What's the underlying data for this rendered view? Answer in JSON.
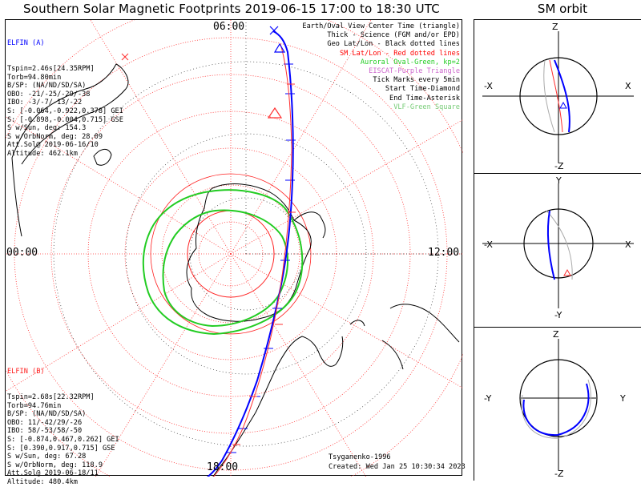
{
  "title": "Southern Solar Magnetic Footprints 2019-06-15 17:00 to 18:30 UTC",
  "orbit_title": "SM orbit",
  "local_time_labels": {
    "top": "06:00",
    "left": "00:00",
    "right": "12:00",
    "bottom": "18:00"
  },
  "elfin_a": {
    "name": "ELFIN (A)",
    "color": "#0000ff",
    "lines": [
      "Tspin=2.46s[24.35RPM]",
      "Torb=94.80min",
      "B/SP: (NA/ND/SD/SA)",
      "OBO: -21/-25/-29/-38",
      "IBO: -3/-7/-13/-22",
      "S: [-0.064,-0.922,0.378] GEI",
      "S: [-0.898,-0.004,0.715] GSE",
      "S w/Sun, deg: 154.3",
      "S w/OrbNorm, deg: 28.09",
      "Att.Sol@ 2019-06-16/10",
      "Altitude: 462.1km"
    ]
  },
  "elfin_b": {
    "name": "ELFIN (B)",
    "color": "#ff2020",
    "lines": [
      "Tspin=2.68s[22.32RPM]",
      "Torb=94.76min",
      "B/SP: (NA/ND/SD/SA)",
      "OBO: 11/-42/29/-26",
      "IBO: 58/-53/58/-50",
      "S: [-0.874,0.467,0.262] GEI",
      "S: [0.390,0.917,0.715] GSE",
      "S w/Sun, deg: 67.28",
      "S w/OrbNorm, deg: 118.9",
      "Att.Sol@ 2019-06-18/11",
      "Altitude: 480.4km"
    ]
  },
  "legend": [
    {
      "text": "Earth/Oval View Center Time (triangle)",
      "color": "#000000"
    },
    {
      "text": "Thick - Science (FGM and/or EPD)",
      "color": "#000000"
    },
    {
      "text": "Geo Lat/Lon - Black dotted lines",
      "color": "#000000"
    },
    {
      "text": "SM Lat/Lon - Red dotted lines",
      "color": "#ff0000"
    },
    {
      "text": "Auroral Oval-Green, kp=2",
      "color": "#22cc22"
    },
    {
      "text": "EISCAT-Purple Triangle",
      "color": "#cc66cc"
    },
    {
      "text": "Tick Marks every 5min",
      "color": "#000000"
    },
    {
      "text": "Start Time-Diamond",
      "color": "#000000"
    },
    {
      "text": "End Time-Asterisk",
      "color": "#000000"
    },
    {
      "text": "VLF-Green Square",
      "color": "#77cc77"
    }
  ],
  "footer": {
    "author": "Tsyganenko-1996",
    "created": "Created: Wed Jan 25 10:30:34 2023"
  },
  "orbit_panels": [
    {
      "top": "Z",
      "bottom": "-Z",
      "left": "-X",
      "right": "X"
    },
    {
      "top": "Y",
      "bottom": "-Y",
      "left": "-X",
      "right": "X"
    },
    {
      "top": "Z",
      "bottom": "-Z",
      "left": "-Y",
      "right": "Y"
    }
  ]
}
